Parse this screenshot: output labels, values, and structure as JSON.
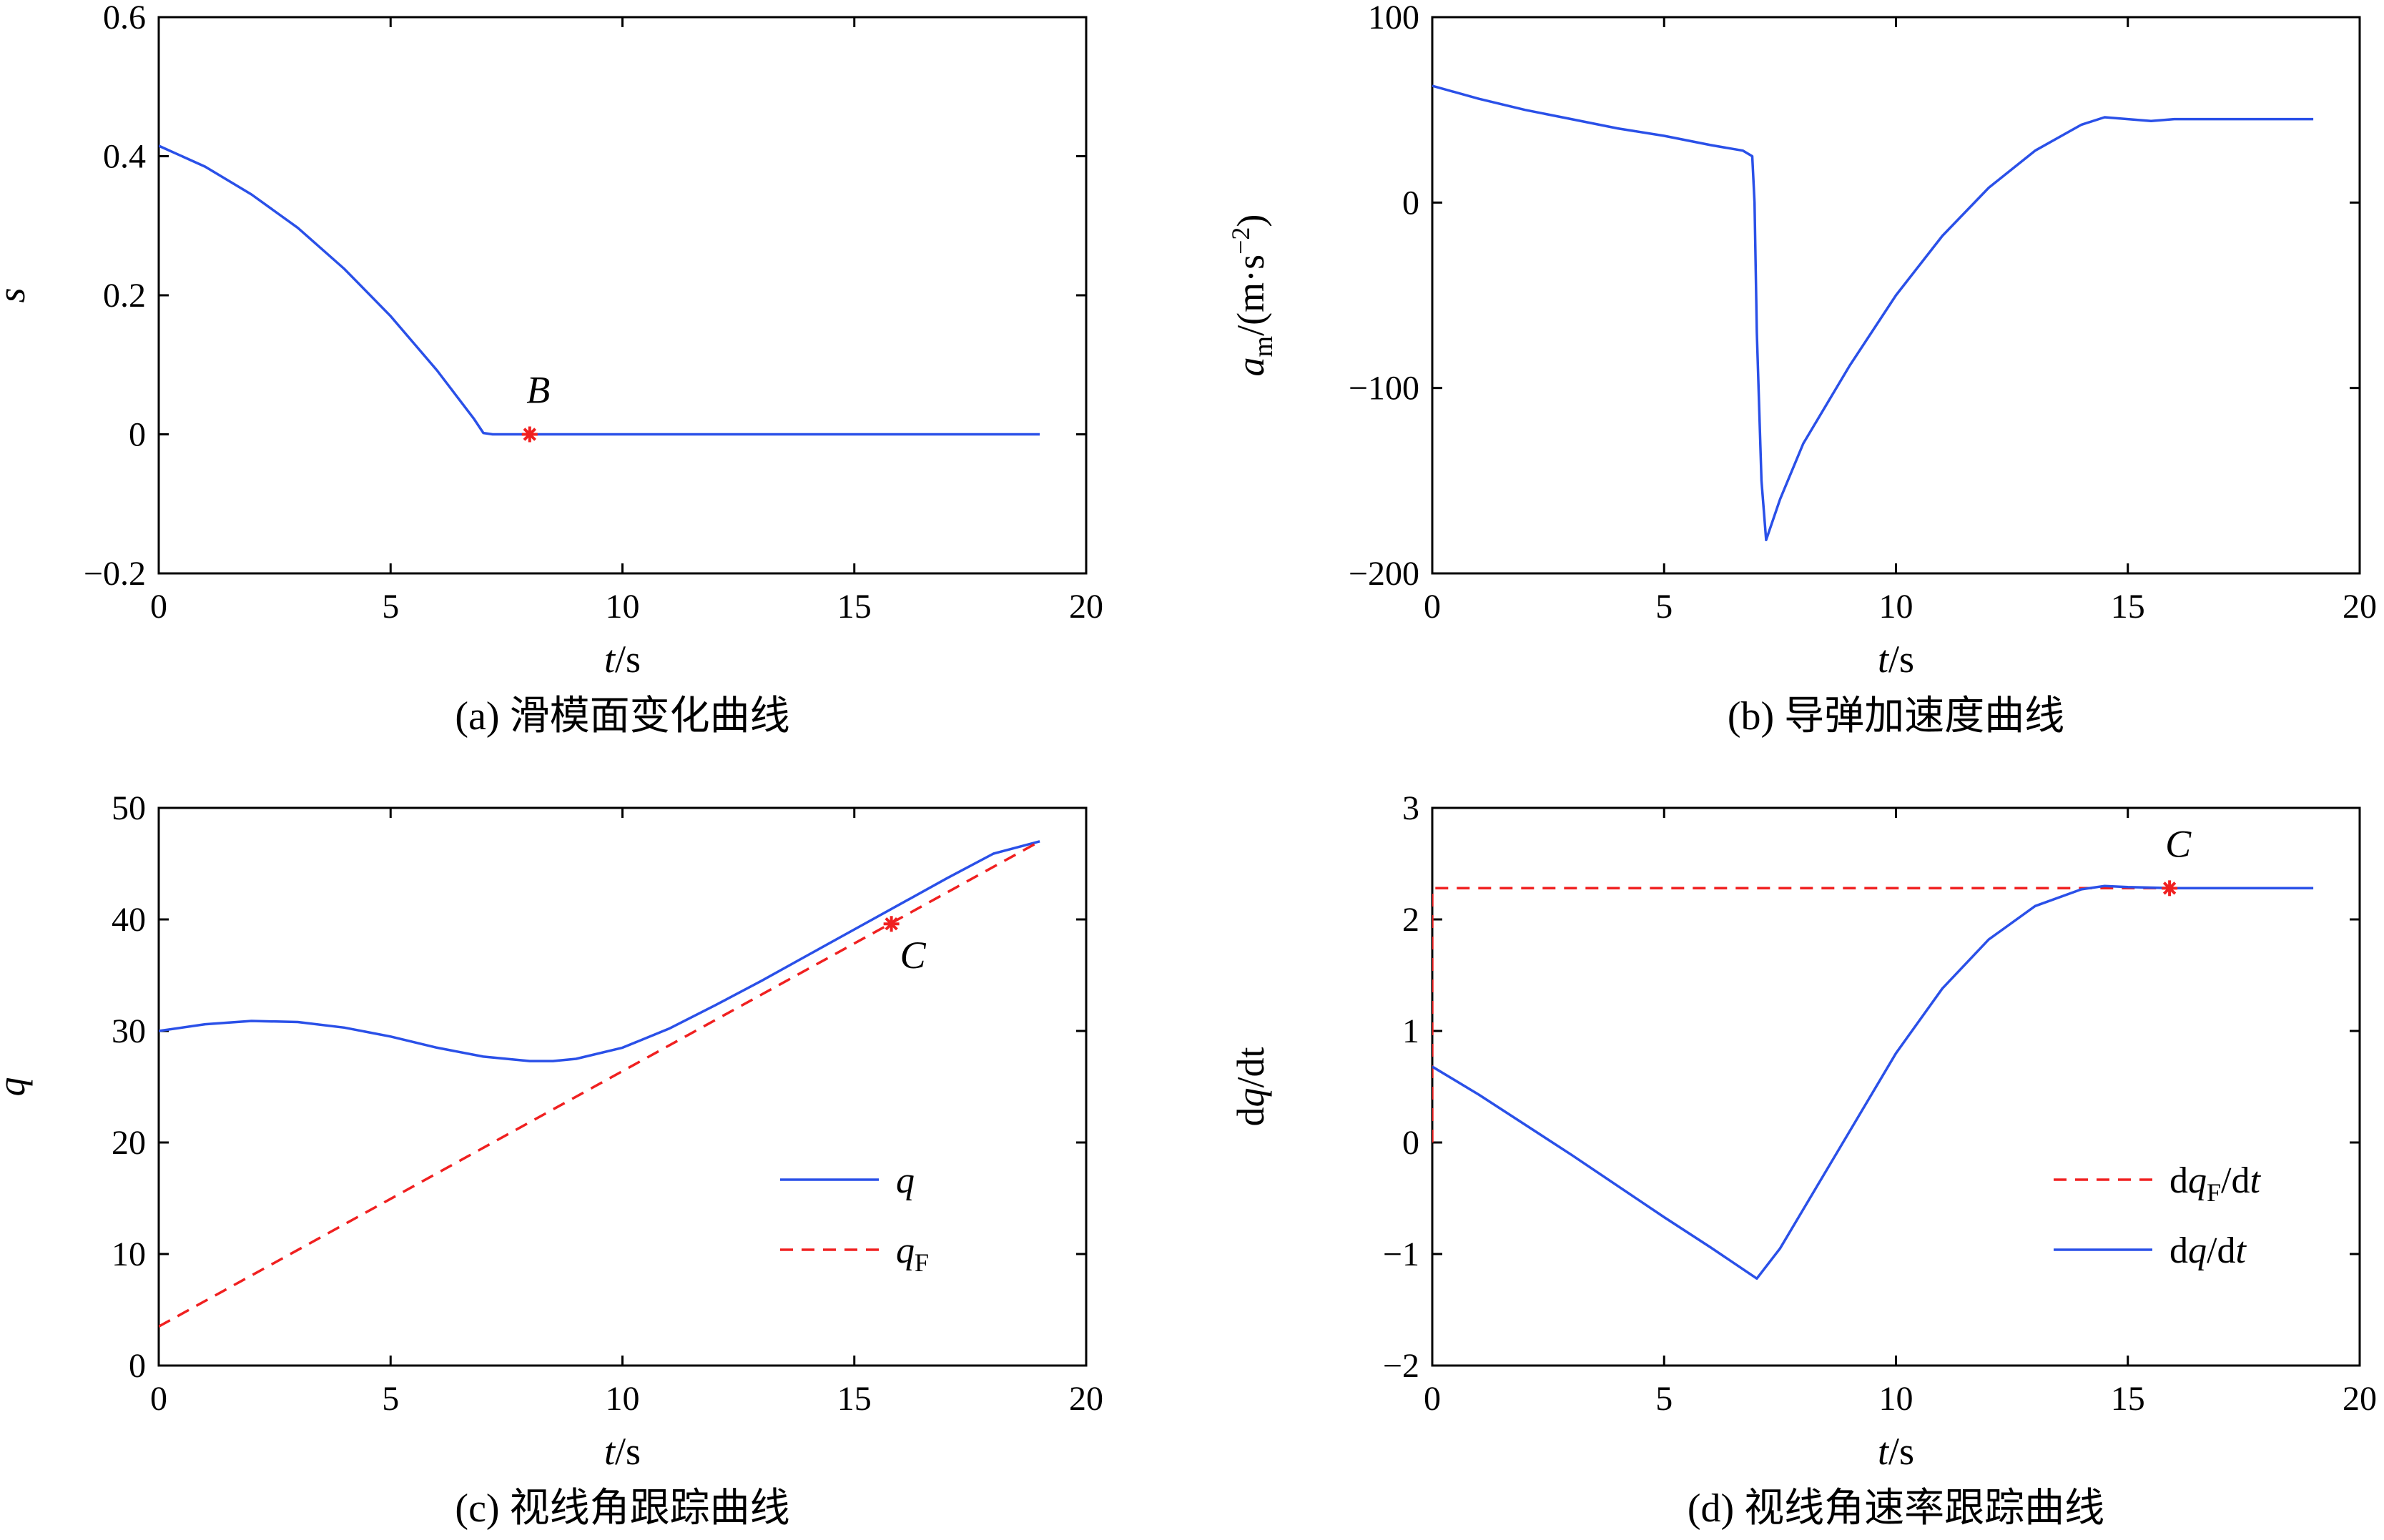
{
  "colors": {
    "series_blue": "#2a50e8",
    "series_red": "#f02020",
    "marker_red": "#f02020",
    "axis": "#000000"
  },
  "chart_data": [
    {
      "id": "a",
      "type": "line",
      "caption": "(a) 滑模面变化曲线",
      "xlabel": {
        "var": "t",
        "unit": "/s"
      },
      "ylabel": {
        "var": "s"
      },
      "xlim": [
        0,
        20
      ],
      "ylim": [
        -0.2,
        0.6
      ],
      "xticks": [
        0,
        5,
        10,
        15,
        20
      ],
      "xtick_labels": [
        "0",
        "5",
        "10",
        "15",
        "20"
      ],
      "yticks": [
        -0.2,
        0,
        0.2,
        0.4,
        0.6
      ],
      "ytick_labels": [
        "−0.2",
        "0",
        "0.2",
        "0.4",
        "0.6"
      ],
      "series": [
        {
          "name": "s",
          "style": "solid",
          "color": "#2a50e8",
          "x": [
            0,
            1,
            2,
            3,
            4,
            5,
            6,
            6.8,
            7.0,
            7.2,
            8,
            10,
            12,
            14,
            16,
            18,
            19
          ],
          "y": [
            0.415,
            0.385,
            0.345,
            0.297,
            0.238,
            0.17,
            0.092,
            0.022,
            0.002,
            0,
            0,
            0,
            0,
            0,
            0,
            0,
            0
          ]
        }
      ],
      "markers": [
        {
          "label": "B",
          "x": 8.0,
          "y": 0.0,
          "symbol": "*"
        }
      ],
      "legend": null
    },
    {
      "id": "b",
      "type": "line",
      "caption": "(b) 导弹加速度曲线",
      "xlabel": {
        "var": "t",
        "unit": "/s"
      },
      "ylabel": {
        "var": "a",
        "sub": "m",
        "unit": "/(m·s",
        "sup": "−2",
        "tail": ")"
      },
      "xlim": [
        0,
        20
      ],
      "ylim": [
        -200,
        100
      ],
      "xticks": [
        0,
        5,
        10,
        15,
        20
      ],
      "xtick_labels": [
        "0",
        "5",
        "10",
        "15",
        "20"
      ],
      "yticks": [
        -200,
        -100,
        0,
        100
      ],
      "ytick_labels": [
        "−200",
        "−100",
        "0",
        "100"
      ],
      "series": [
        {
          "name": "a_m",
          "style": "solid",
          "color": "#2a50e8",
          "x": [
            0,
            1,
            2,
            3,
            4,
            5,
            6,
            6.7,
            6.9,
            6.95,
            7.0,
            7.1,
            7.2,
            7.5,
            8,
            9,
            10,
            11,
            12,
            13,
            14,
            14.5,
            15,
            15.5,
            16,
            17,
            18,
            19
          ],
          "y": [
            63,
            56,
            50,
            45,
            40,
            36,
            31,
            28,
            25,
            0,
            -70,
            -150,
            -182,
            -160,
            -130,
            -88,
            -50,
            -18,
            8,
            28,
            42,
            46,
            45,
            44,
            45,
            45,
            45,
            45
          ]
        }
      ],
      "markers": [],
      "legend": null
    },
    {
      "id": "c",
      "type": "line",
      "caption": "(c) 视线角跟踪曲线",
      "xlabel": {
        "var": "t",
        "unit": "/s"
      },
      "ylabel": {
        "var": "q"
      },
      "xlim": [
        0,
        20
      ],
      "ylim": [
        0,
        50
      ],
      "xticks": [
        0,
        5,
        10,
        15,
        20
      ],
      "xtick_labels": [
        "0",
        "5",
        "10",
        "15",
        "20"
      ],
      "yticks": [
        0,
        10,
        20,
        30,
        40,
        50
      ],
      "ytick_labels": [
        "0",
        "10",
        "20",
        "30",
        "40",
        "50"
      ],
      "series": [
        {
          "name": "q",
          "style": "solid",
          "color": "#2a50e8",
          "x": [
            0,
            1,
            2,
            3,
            4,
            5,
            6,
            7,
            8,
            8.5,
            9,
            10,
            11,
            12,
            13,
            14,
            15,
            16,
            17,
            18,
            19
          ],
          "y": [
            30,
            30.6,
            30.9,
            30.8,
            30.3,
            29.5,
            28.5,
            27.7,
            27.3,
            27.3,
            27.5,
            28.5,
            30.2,
            32.3,
            34.5,
            36.8,
            39.1,
            41.4,
            43.7,
            45.9,
            47.0
          ]
        },
        {
          "name": "q_F",
          "style": "dashed",
          "color": "#f02020",
          "x": [
            0,
            19
          ],
          "y": [
            3.5,
            47.0
          ]
        }
      ],
      "markers": [
        {
          "label": "C",
          "x": 15.8,
          "y": 39.6,
          "symbol": "*"
        }
      ],
      "legend": {
        "position": "bottom-right",
        "entries": [
          {
            "var": "q",
            "style": "solid",
            "color": "#2a50e8"
          },
          {
            "var": "q",
            "sub": "F",
            "style": "dashed",
            "color": "#f02020"
          }
        ]
      }
    },
    {
      "id": "d",
      "type": "line",
      "caption": "(d) 视线角速率跟踪曲线",
      "xlabel": {
        "var": "t",
        "unit": "/s"
      },
      "ylabel": {
        "pre": "d",
        "var": "q",
        "unit": "/dt"
      },
      "xlim": [
        0,
        20
      ],
      "ylim": [
        -2,
        3
      ],
      "xticks": [
        0,
        5,
        10,
        15,
        20
      ],
      "xtick_labels": [
        "0",
        "5",
        "10",
        "15",
        "20"
      ],
      "yticks": [
        -2,
        -1,
        0,
        1,
        2,
        3
      ],
      "ytick_labels": [
        "−2",
        "−1",
        "0",
        "1",
        "2",
        "3"
      ],
      "series": [
        {
          "name": "dq_F/dt",
          "style": "dashed",
          "color": "#f02020",
          "x": [
            0,
            0,
            19
          ],
          "y": [
            0,
            2.28,
            2.28
          ]
        },
        {
          "name": "dq/dt",
          "style": "solid",
          "color": "#2a50e8",
          "x": [
            0,
            1,
            2,
            3,
            4,
            5,
            6,
            7.0,
            7.5,
            8,
            9,
            10,
            11,
            12,
            13,
            14,
            14.5,
            15,
            16,
            17,
            18,
            19
          ],
          "y": [
            0.68,
            0.43,
            0.16,
            -0.11,
            -0.39,
            -0.67,
            -0.94,
            -1.22,
            -0.95,
            -0.6,
            0.1,
            0.8,
            1.38,
            1.82,
            2.12,
            2.27,
            2.3,
            2.29,
            2.28,
            2.28,
            2.28,
            2.28
          ]
        }
      ],
      "markers": [
        {
          "label": "C",
          "x": 15.9,
          "y": 2.28,
          "symbol": "*"
        }
      ],
      "legend": {
        "position": "bottom-right",
        "entries": [
          {
            "pre": "d",
            "var": "q",
            "sub": "F",
            "unit": "/d",
            "var2": "t",
            "style": "dashed",
            "color": "#f02020"
          },
          {
            "pre": "d",
            "var": "q",
            "unit": "/d",
            "var2": "t",
            "style": "solid",
            "color": "#2a50e8"
          }
        ]
      }
    }
  ]
}
